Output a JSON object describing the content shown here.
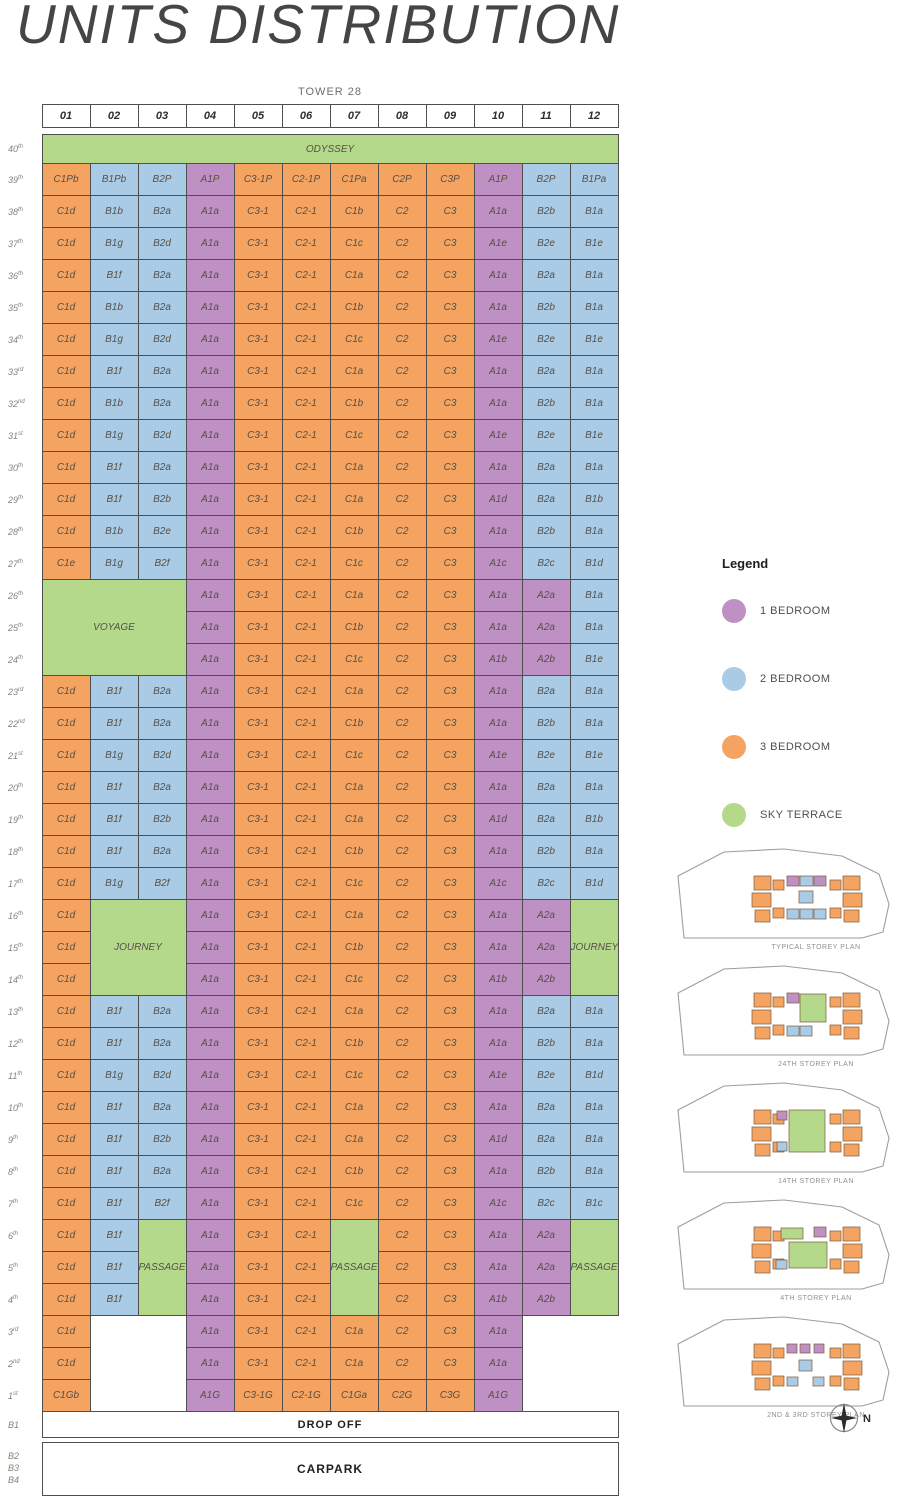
{
  "page_title": "UNITS DISTRIBUTION",
  "tower_label": "TOWER 28",
  "legend": {
    "title": "Legend",
    "items": [
      {
        "label": "1 BEDROOM",
        "color": "#bf90c4"
      },
      {
        "label": "2 BEDROOM",
        "color": "#a9cbe6"
      },
      {
        "label": "3 BEDROOM",
        "color": "#f4a360"
      },
      {
        "label": "SKY TERRACE",
        "color": "#b5d98b"
      }
    ]
  },
  "plans": [
    {
      "caption": "TYPICAL STOREY PLAN",
      "variant": "typical"
    },
    {
      "caption": "24TH STOREY PLAN",
      "variant": "sky24"
    },
    {
      "caption": "14TH STOREY PLAN",
      "variant": "sky14"
    },
    {
      "caption": "4TH STOREY PLAN",
      "variant": "sky4"
    },
    {
      "caption": "2ND & 3RD STOREY PLAN",
      "variant": "ground"
    }
  ],
  "compass": {
    "label": "N"
  },
  "colors": {
    "one_bedroom": "#bf90c4",
    "two_bedroom": "#a9cbe6",
    "three_bedroom": "#f4a360",
    "sky_terrace": "#b5d98b",
    "grid_line": "#4f4f4f",
    "cell_text": "#584f45"
  },
  "chart_data": {
    "type": "table",
    "title": "UNITS DISTRIBUTION",
    "subtitle": "TOWER 28",
    "columns": [
      "01",
      "02",
      "03",
      "04",
      "05",
      "06",
      "07",
      "08",
      "09",
      "10",
      "11",
      "12"
    ],
    "legend": [
      {
        "label": "1 BEDROOM",
        "color": "#bf90c4"
      },
      {
        "label": "2 BEDROOM",
        "color": "#a9cbe6"
      },
      {
        "label": "3 BEDROOM",
        "color": "#f4a360"
      },
      {
        "label": "SKY TERRACE",
        "color": "#b5d98b"
      }
    ],
    "floors": [
      {
        "f": "40",
        "s": "th",
        "cells": [
          {
            "u": "ODYSSEY",
            "t": "sky",
            "cs": 12
          }
        ]
      },
      {
        "f": "39",
        "s": "th",
        "cells": [
          "C1Pb",
          "B1Pb",
          "B2P",
          "A1P",
          "C3-1P",
          "C2-1P",
          "C1Pa",
          "C2P",
          "C3P",
          "A1P",
          "B2P",
          "B1Pa"
        ]
      },
      {
        "f": "38",
        "s": "th",
        "cells": [
          "C1d",
          "B1b",
          "B2a",
          "A1a",
          "C3-1",
          "C2-1",
          "C1b",
          "C2",
          "C3",
          "A1a",
          "B2b",
          "B1a"
        ]
      },
      {
        "f": "37",
        "s": "th",
        "cells": [
          "C1d",
          "B1g",
          "B2d",
          "A1a",
          "C3-1",
          "C2-1",
          "C1c",
          "C2",
          "C3",
          "A1e",
          "B2e",
          "B1e"
        ]
      },
      {
        "f": "36",
        "s": "th",
        "cells": [
          "C1d",
          "B1f",
          "B2a",
          "A1a",
          "C3-1",
          "C2-1",
          "C1a",
          "C2",
          "C3",
          "A1a",
          "B2a",
          "B1a"
        ]
      },
      {
        "f": "35",
        "s": "th",
        "cells": [
          "C1d",
          "B1b",
          "B2a",
          "A1a",
          "C3-1",
          "C2-1",
          "C1b",
          "C2",
          "C3",
          "A1a",
          "B2b",
          "B1a"
        ]
      },
      {
        "f": "34",
        "s": "th",
        "cells": [
          "C1d",
          "B1g",
          "B2d",
          "A1a",
          "C3-1",
          "C2-1",
          "C1c",
          "C2",
          "C3",
          "A1e",
          "B2e",
          "B1e"
        ]
      },
      {
        "f": "33",
        "s": "rd",
        "cells": [
          "C1d",
          "B1f",
          "B2a",
          "A1a",
          "C3-1",
          "C2-1",
          "C1a",
          "C2",
          "C3",
          "A1a",
          "B2a",
          "B1a"
        ]
      },
      {
        "f": "32",
        "s": "nd",
        "cells": [
          "C1d",
          "B1b",
          "B2a",
          "A1a",
          "C3-1",
          "C2-1",
          "C1b",
          "C2",
          "C3",
          "A1a",
          "B2b",
          "B1a"
        ]
      },
      {
        "f": "31",
        "s": "st",
        "cells": [
          "C1d",
          "B1g",
          "B2d",
          "A1a",
          "C3-1",
          "C2-1",
          "C1c",
          "C2",
          "C3",
          "A1e",
          "B2e",
          "B1e"
        ]
      },
      {
        "f": "30",
        "s": "th",
        "cells": [
          "C1d",
          "B1f",
          "B2a",
          "A1a",
          "C3-1",
          "C2-1",
          "C1a",
          "C2",
          "C3",
          "A1a",
          "B2a",
          "B1a"
        ]
      },
      {
        "f": "29",
        "s": "th",
        "cells": [
          "C1d",
          "B1f",
          "B2b",
          "A1a",
          "C3-1",
          "C2-1",
          "C1a",
          "C2",
          "C3",
          "A1d",
          "B2a",
          "B1b"
        ]
      },
      {
        "f": "28",
        "s": "th",
        "cells": [
          "C1d",
          "B1b",
          "B2e",
          "A1a",
          "C3-1",
          "C2-1",
          "C1b",
          "C2",
          "C3",
          "A1a",
          "B2b",
          "B1a"
        ]
      },
      {
        "f": "27",
        "s": "th",
        "cells": [
          "C1e",
          "B1g",
          "B2f",
          "A1a",
          "C3-1",
          "C2-1",
          "C1c",
          "C2",
          "C3",
          "A1c",
          "B2c",
          "B1d"
        ]
      },
      {
        "f": "26",
        "s": "th",
        "cells": [
          {
            "u": "VOYAGE",
            "t": "sky",
            "cs": 3,
            "rs": 3
          },
          "A1a",
          "C3-1",
          "C2-1",
          "C1a",
          "C2",
          "C3",
          "A1a",
          "A2a",
          "B1a"
        ]
      },
      {
        "f": "25",
        "s": "th",
        "cells": [
          "A1a",
          "C3-1",
          "C2-1",
          "C1b",
          "C2",
          "C3",
          "A1a",
          "A2a",
          "B1a"
        ]
      },
      {
        "f": "24",
        "s": "th",
        "cells": [
          "A1a",
          "C3-1",
          "C2-1",
          "C1c",
          "C2",
          "C3",
          "A1b",
          "A2b",
          "B1e"
        ]
      },
      {
        "f": "23",
        "s": "rd",
        "cells": [
          "C1d",
          "B1f",
          "B2a",
          "A1a",
          "C3-1",
          "C2-1",
          "C1a",
          "C2",
          "C3",
          "A1a",
          "B2a",
          "B1a"
        ]
      },
      {
        "f": "22",
        "s": "nd",
        "cells": [
          "C1d",
          "B1f",
          "B2a",
          "A1a",
          "C3-1",
          "C2-1",
          "C1b",
          "C2",
          "C3",
          "A1a",
          "B2b",
          "B1a"
        ]
      },
      {
        "f": "21",
        "s": "st",
        "cells": [
          "C1d",
          "B1g",
          "B2d",
          "A1a",
          "C3-1",
          "C2-1",
          "C1c",
          "C2",
          "C3",
          "A1e",
          "B2e",
          "B1e"
        ]
      },
      {
        "f": "20",
        "s": "th",
        "cells": [
          "C1d",
          "B1f",
          "B2a",
          "A1a",
          "C3-1",
          "C2-1",
          "C1a",
          "C2",
          "C3",
          "A1a",
          "B2a",
          "B1a"
        ]
      },
      {
        "f": "19",
        "s": "th",
        "cells": [
          "C1d",
          "B1f",
          "B2b",
          "A1a",
          "C3-1",
          "C2-1",
          "C1a",
          "C2",
          "C3",
          "A1d",
          "B2a",
          "B1b"
        ]
      },
      {
        "f": "18",
        "s": "th",
        "cells": [
          "C1d",
          "B1f",
          "B2a",
          "A1a",
          "C3-1",
          "C2-1",
          "C1b",
          "C2",
          "C3",
          "A1a",
          "B2b",
          "B1a"
        ]
      },
      {
        "f": "17",
        "s": "th",
        "cells": [
          "C1d",
          "B1g",
          "B2f",
          "A1a",
          "C3-1",
          "C2-1",
          "C1c",
          "C2",
          "C3",
          "A1c",
          "B2c",
          "B1d"
        ]
      },
      {
        "f": "16",
        "s": "th",
        "cells": [
          "C1d",
          {
            "u": "JOURNEY",
            "t": "sky",
            "cs": 2,
            "rs": 3
          },
          "A1a",
          "C3-1",
          "C2-1",
          "C1a",
          "C2",
          "C3",
          "A1a",
          "A2a",
          {
            "u": "JOURNEY",
            "t": "sky",
            "rs": 3
          }
        ]
      },
      {
        "f": "15",
        "s": "th",
        "cells": [
          "C1d",
          "A1a",
          "C3-1",
          "C2-1",
          "C1b",
          "C2",
          "C3",
          "A1a",
          "A2a"
        ]
      },
      {
        "f": "14",
        "s": "th",
        "cells": [
          "C1d",
          "A1a",
          "C3-1",
          "C2-1",
          "C1c",
          "C2",
          "C3",
          "A1b",
          "A2b"
        ]
      },
      {
        "f": "13",
        "s": "th",
        "cells": [
          "C1d",
          "B1f",
          "B2a",
          "A1a",
          "C3-1",
          "C2-1",
          "C1a",
          "C2",
          "C3",
          "A1a",
          "B2a",
          "B1a"
        ]
      },
      {
        "f": "12",
        "s": "th",
        "cells": [
          "C1d",
          "B1f",
          "B2a",
          "A1a",
          "C3-1",
          "C2-1",
          "C1b",
          "C2",
          "C3",
          "A1a",
          "B2b",
          "B1a"
        ]
      },
      {
        "f": "11",
        "s": "th",
        "cells": [
          "C1d",
          "B1g",
          "B2d",
          "A1a",
          "C3-1",
          "C2-1",
          "C1c",
          "C2",
          "C3",
          "A1e",
          "B2e",
          "B1d"
        ]
      },
      {
        "f": "10",
        "s": "th",
        "cells": [
          "C1d",
          "B1f",
          "B2a",
          "A1a",
          "C3-1",
          "C2-1",
          "C1a",
          "C2",
          "C3",
          "A1a",
          "B2a",
          "B1a"
        ]
      },
      {
        "f": "9",
        "s": "th",
        "cells": [
          "C1d",
          "B1f",
          "B2b",
          "A1a",
          "C3-1",
          "C2-1",
          "C1a",
          "C2",
          "C3",
          "A1d",
          "B2a",
          "B1a"
        ]
      },
      {
        "f": "8",
        "s": "th",
        "cells": [
          "C1d",
          "B1f",
          "B2a",
          "A1a",
          "C3-1",
          "C2-1",
          "C1b",
          "C2",
          "C3",
          "A1a",
          "B2b",
          "B1a"
        ]
      },
      {
        "f": "7",
        "s": "th",
        "cells": [
          "C1d",
          "B1f",
          "B2f",
          "A1a",
          "C3-1",
          "C2-1",
          "C1c",
          "C2",
          "C3",
          "A1c",
          "B2c",
          "B1c"
        ]
      },
      {
        "f": "6",
        "s": "th",
        "cells": [
          "C1d",
          "B1f",
          {
            "u": "PASSAGE",
            "t": "sky",
            "rs": 3
          },
          "A1a",
          "C3-1",
          "C2-1",
          {
            "u": "PASSAGE",
            "t": "sky",
            "rs": 3
          },
          "C2",
          "C3",
          "A1a",
          "A2a",
          {
            "u": "PASSAGE",
            "t": "sky",
            "rs": 3
          }
        ]
      },
      {
        "f": "5",
        "s": "th",
        "cells": [
          "C1d",
          "B1f",
          "A1a",
          "C3-1",
          "C2-1",
          "C2",
          "C3",
          "A1a",
          "A2a"
        ]
      },
      {
        "f": "4",
        "s": "th",
        "cells": [
          "C1d",
          "B1f",
          "A1a",
          "C3-1",
          "C2-1",
          "C2",
          "C3",
          "A1b",
          "A2b"
        ]
      },
      {
        "f": "3",
        "s": "rd",
        "cells": [
          "C1d",
          {
            "u": "",
            "t": "empty",
            "cs": 2
          },
          "A1a",
          "C3-1",
          "C2-1",
          "C1a",
          "C2",
          "C3",
          "A1a",
          {
            "u": "",
            "t": "empty",
            "cs": 2
          }
        ]
      },
      {
        "f": "2",
        "s": "nd",
        "cells": [
          "C1d",
          {
            "u": "",
            "t": "empty",
            "cs": 2
          },
          "A1a",
          "C3-1",
          "C2-1",
          "C1a",
          "C2",
          "C3",
          "A1a",
          {
            "u": "",
            "t": "empty",
            "cs": 2
          }
        ]
      },
      {
        "f": "1",
        "s": "st",
        "cells": [
          {
            "u": "C1Gb"
          },
          {
            "u": "",
            "t": "empty",
            "cs": 2
          },
          "A1G",
          "C3-1G",
          "C2-1G",
          "C1Ga",
          "C2G",
          "C3G",
          "A1G",
          {
            "u": "",
            "t": "empty",
            "cs": 2
          }
        ]
      }
    ],
    "basement": [
      {
        "labels": [
          "B1"
        ],
        "text": "DROP OFF"
      },
      {
        "labels": [
          "B2",
          "B3",
          "B4"
        ],
        "text": "CARPARK"
      }
    ]
  }
}
